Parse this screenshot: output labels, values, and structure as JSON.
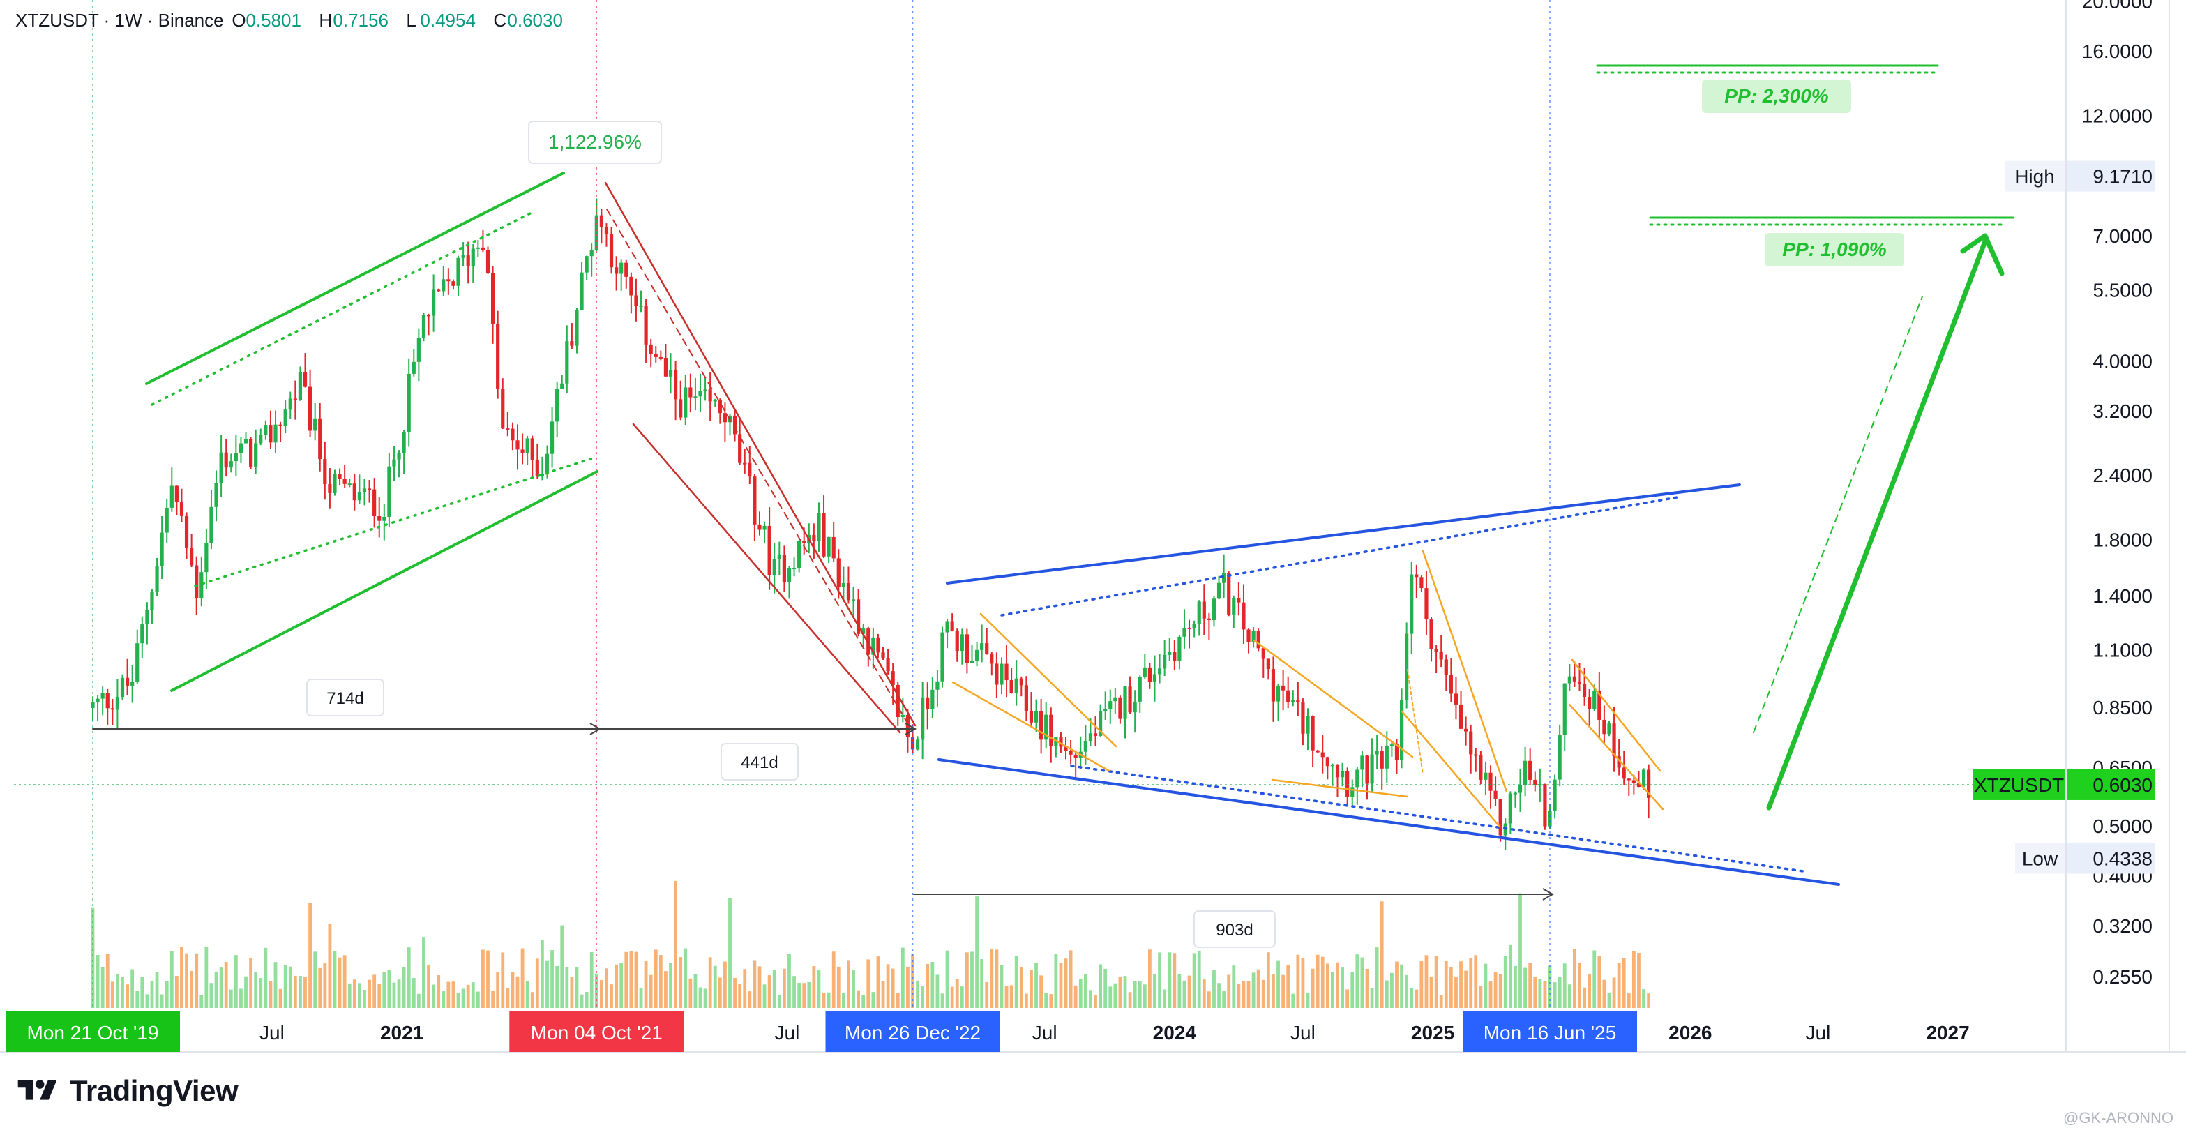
{
  "header": {
    "symbol": "XTZUSDT · 1W · Binance",
    "ohlc": [
      {
        "key": "O",
        "value": "0.5801"
      },
      {
        "key": "H",
        "value": "0.7156"
      },
      {
        "key": "L",
        "value": "0.4954"
      },
      {
        "key": "C",
        "value": "0.6030"
      }
    ]
  },
  "colors": {
    "up": "#089981",
    "up_bright": "#22b14c",
    "down": "#e3262a",
    "trend_green": "#1fbf2f",
    "trend_red": "#c9302c",
    "trend_blue": "#2454e0",
    "wedge_orange": "#f5a623",
    "last_price_bg": "#1fd01f",
    "date_green": "#16c316",
    "date_red": "#f23645",
    "date_blue": "#2962ff"
  },
  "chart_data": {
    "type": "candlestick",
    "symbol": "XTZUSDT",
    "interval": "1W",
    "exchange": "Binance",
    "scale": "log",
    "y_ticks": [
      "20.0000",
      "16.0000",
      "12.0000",
      "7.0000",
      "5.5000",
      "4.0000",
      "3.2000",
      "2.4000",
      "1.8000",
      "1.4000",
      "1.1000",
      "0.8500",
      "0.6500",
      "0.5000",
      "0.4000",
      "0.3200",
      "0.2550"
    ],
    "x_labels": [
      "Jul",
      "2021",
      "2022",
      "Jul",
      "Jul",
      "2024",
      "Jul",
      "2025",
      "2026",
      "Jul",
      "2027"
    ],
    "date_markers": [
      {
        "label": "Mon 21 Oct '19",
        "date": "2019-10-21",
        "color": "green"
      },
      {
        "label": "Mon 04 Oct '21",
        "date": "2021-10-04",
        "color": "red"
      },
      {
        "label": "Mon 26 Dec '22",
        "date": "2022-12-26",
        "color": "blue"
      },
      {
        "label": "Mon 16 Jun '25",
        "date": "2025-06-16",
        "color": "blue"
      }
    ],
    "price_markers": [
      {
        "label": "High",
        "value": "9.1710"
      },
      {
        "label": "XTZUSDT",
        "value": "0.6030"
      },
      {
        "label": "Low",
        "value": "0.4338"
      }
    ],
    "annotations": [
      {
        "text": "1,122.96%"
      },
      {
        "text": "714d"
      },
      {
        "text": "441d"
      },
      {
        "text": "903d"
      },
      {
        "text": "PP: 2,300%"
      },
      {
        "text": "PP: 1,090%"
      }
    ],
    "price_path": [
      {
        "date": "2019-10-21",
        "close": 0.85
      },
      {
        "date": "2019-12-15",
        "close": 0.95
      },
      {
        "date": "2020-02-10",
        "close": 2.3
      },
      {
        "date": "2020-03-16",
        "close": 1.45
      },
      {
        "date": "2020-04-20",
        "close": 2.6
      },
      {
        "date": "2020-06-15",
        "close": 2.7
      },
      {
        "date": "2020-08-10",
        "close": 3.6
      },
      {
        "date": "2020-09-21",
        "close": 2.3
      },
      {
        "date": "2020-12-07",
        "close": 2.1
      },
      {
        "date": "2021-02-01",
        "close": 4.8
      },
      {
        "date": "2021-04-26",
        "close": 7.1
      },
      {
        "date": "2021-05-24",
        "close": 2.9
      },
      {
        "date": "2021-07-19",
        "close": 2.5
      },
      {
        "date": "2021-09-27",
        "close": 7.0
      },
      {
        "date": "2021-10-04",
        "close": 7.8
      },
      {
        "date": "2021-11-29",
        "close": 5.0
      },
      {
        "date": "2022-01-24",
        "close": 3.4
      },
      {
        "date": "2022-04-04",
        "close": 3.2
      },
      {
        "date": "2022-06-13",
        "close": 1.55
      },
      {
        "date": "2022-08-15",
        "close": 1.9
      },
      {
        "date": "2022-11-07",
        "close": 1.05
      },
      {
        "date": "2022-12-26",
        "close": 0.72
      },
      {
        "date": "2023-02-13",
        "close": 1.2
      },
      {
        "date": "2023-04-24",
        "close": 1.0
      },
      {
        "date": "2023-08-07",
        "close": 0.68
      },
      {
        "date": "2023-11-13",
        "close": 0.95
      },
      {
        "date": "2024-03-11",
        "close": 1.45
      },
      {
        "date": "2024-05-20",
        "close": 0.95
      },
      {
        "date": "2024-09-02",
        "close": 0.62
      },
      {
        "date": "2024-11-11",
        "close": 0.68
      },
      {
        "date": "2024-12-02",
        "close": 1.6
      },
      {
        "date": "2025-02-03",
        "close": 0.82
      },
      {
        "date": "2025-04-07",
        "close": 0.5
      },
      {
        "date": "2025-05-12",
        "close": 0.65
      },
      {
        "date": "2025-06-16",
        "close": 0.52
      },
      {
        "date": "2025-07-14",
        "close": 1.05
      },
      {
        "date": "2025-09-01",
        "close": 0.8
      },
      {
        "date": "2025-10-13",
        "close": 0.6
      },
      {
        "date": "2025-11-03",
        "close": 0.603
      }
    ]
  },
  "branding": {
    "logo_text": "TradingView",
    "watermark": "@GK-ARONNO"
  }
}
